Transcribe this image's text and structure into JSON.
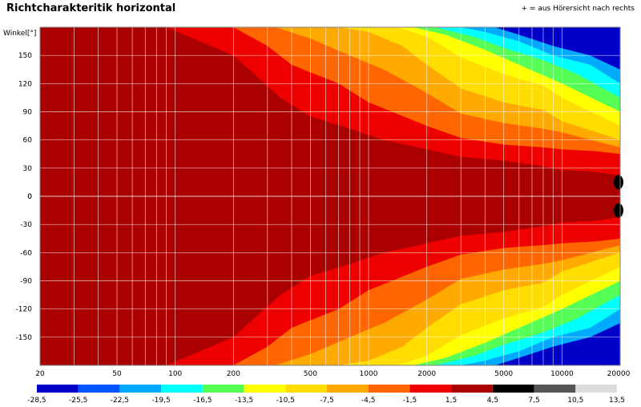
{
  "title": "Richtcharakteritik horizontal",
  "note": "+ = aus Hörersicht nach rechts",
  "chart_data": {
    "type": "heatmap",
    "title": "Richtcharakteritik horizontal",
    "ylabel": "Winkel[°]",
    "x_scale": "log",
    "xlim": [
      20,
      20000
    ],
    "ylim": [
      -180,
      180
    ],
    "x_ticks": [
      "20",
      "50",
      "100",
      "200",
      "500",
      "1000",
      "2000",
      "5000",
      "10000",
      "20000"
    ],
    "y_ticks": [
      "150",
      "120",
      "90",
      "60",
      "30",
      "0",
      "-30",
      "-60",
      "-90",
      "-120",
      "-150"
    ],
    "colorbar": {
      "ticks": [
        "-28,5",
        "-25,5",
        "-22,5",
        "-19,5",
        "-16,5",
        "-13,5",
        "-10,5",
        "-7,5",
        "-4,5",
        "-1,5",
        "1,5",
        "4,5",
        "7,5",
        "10,5",
        "13,5"
      ],
      "colors": [
        "#0000c8",
        "#0055ff",
        "#00aaff",
        "#00ffff",
        "#55ff55",
        "#ffff00",
        "#ffdd00",
        "#ffaa00",
        "#ff6600",
        "#ee0000",
        "#aa0000",
        "#000000",
        "#555555",
        "#aaaaaa",
        "#dddddd"
      ]
    },
    "contours": [
      {
        "level": "-1,5",
        "x": [
          20,
          90,
          200,
          350,
          500,
          800,
          1200,
          2000,
          3000,
          5000,
          8000,
          10000,
          15000,
          20000
        ],
        "y": [
          180,
          180,
          150,
          105,
          85,
          72,
          60,
          50,
          42,
          38,
          32,
          28,
          26,
          22
        ]
      },
      {
        "level": "-4,5",
        "x": [
          200,
          300,
          400,
          700,
          1000,
          2000,
          3000,
          5000,
          8000,
          10000,
          15000,
          20000
        ],
        "y": [
          180,
          160,
          140,
          120,
          100,
          75,
          62,
          55,
          52,
          50,
          48,
          45
        ]
      },
      {
        "level": "-7,5",
        "x": [
          330,
          500,
          800,
          1200,
          2000,
          3000,
          5000,
          8000,
          10000,
          20000
        ],
        "y": [
          180,
          168,
          150,
          135,
          110,
          88,
          78,
          72,
          68,
          52
        ]
      },
      {
        "level": "-10,5",
        "x": [
          700,
          1000,
          1500,
          2000,
          3000,
          5000,
          8000,
          10000,
          20000
        ],
        "y": [
          180,
          175,
          160,
          140,
          115,
          100,
          92,
          80,
          60
        ]
      },
      {
        "level": "-13,5",
        "x": [
          1400,
          2000,
          3000,
          5000,
          8000,
          10000,
          20000
        ],
        "y": [
          180,
          170,
          148,
          130,
          118,
          105,
          75
        ]
      },
      {
        "level": "-16,5",
        "x": [
          1700,
          2500,
          4000,
          6000,
          10000,
          20000
        ],
        "y": [
          180,
          172,
          156,
          140,
          120,
          90
        ]
      },
      {
        "level": "-19,5",
        "x": [
          2200,
          3500,
          5000,
          8000,
          12000,
          20000
        ],
        "y": [
          180,
          170,
          158,
          145,
          130,
          105
        ]
      },
      {
        "level": "-22,5",
        "x": [
          3000,
          4000,
          6000,
          9000,
          14000,
          20000
        ],
        "y": [
          180,
          175,
          165,
          150,
          140,
          120
        ]
      }
    ]
  }
}
